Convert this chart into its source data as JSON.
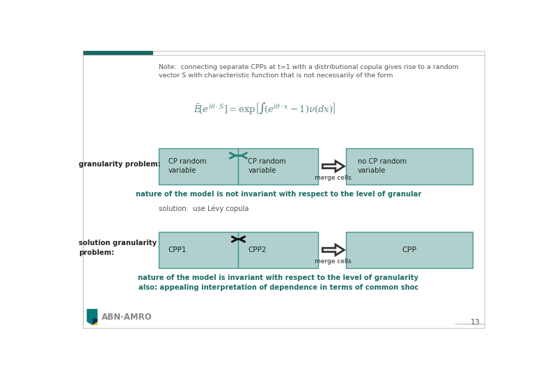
{
  "bg_color": "#ffffff",
  "box_fill": "#afd0cc",
  "box_fill2": "#b8d8d5",
  "box_edge": "#4a9490",
  "text_color": "#555555",
  "dark_text": "#222222",
  "note_text": "Note:  connecting separate CPPs at t=1 with a distributional copula gives rise to a random\nvector S with characteristic function that is not necessarily of the form",
  "granularity_label": "granularity problem:",
  "solution_label": "solution granularity\nproblem:",
  "solution_text": "solution:  use Lévy copula",
  "box1_text1": "CP random\nvariable",
  "box2_text1": "CP random\nvariable",
  "merge_cells1": "merge cells",
  "no_cp_text": "no CP random\nvariable",
  "box1_text2": "CPP1",
  "box2_text2": "CPP2",
  "merge_cells2": "merge cells",
  "cpp_text": "CPP",
  "nature_text1": "nature of the model is not invariant with respect to the level of granular",
  "nature_text2": "nature of the model is invariant with respect to the level of granularity\nalso: appealing interpretation of dependence in terms of common shoc",
  "page_num": "13",
  "header_teal": "#1a6b65",
  "teal_arrow": "#2a7d78",
  "logo_teal": "#007b7a",
  "logo_yellow": "#f0c000",
  "logo_gray": "#888888",
  "formula_color": "#5a8a87",
  "nature_color": "#1a6b65"
}
